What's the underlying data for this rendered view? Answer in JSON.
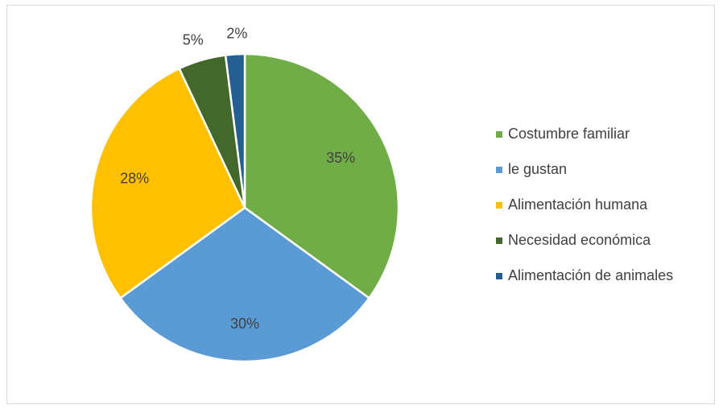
{
  "chart_data": {
    "type": "pie",
    "title": "",
    "legend_position": "right",
    "slices": [
      {
        "name": "Costumbre familiar",
        "value": 35,
        "label": "35%",
        "color": "#70ad47"
      },
      {
        "name": "le gustan",
        "value": 30,
        "label": "30%",
        "color": "#5b9bd5"
      },
      {
        "name": "Alimentación humana",
        "value": 28,
        "label": "28%",
        "color": "#ffc000"
      },
      {
        "name": "Necesidad económica",
        "value": 5,
        "label": "5%",
        "color": "#43682b"
      },
      {
        "name": "Alimentación de animales",
        "value": 2,
        "label": "2%",
        "color": "#255e91"
      }
    ]
  }
}
